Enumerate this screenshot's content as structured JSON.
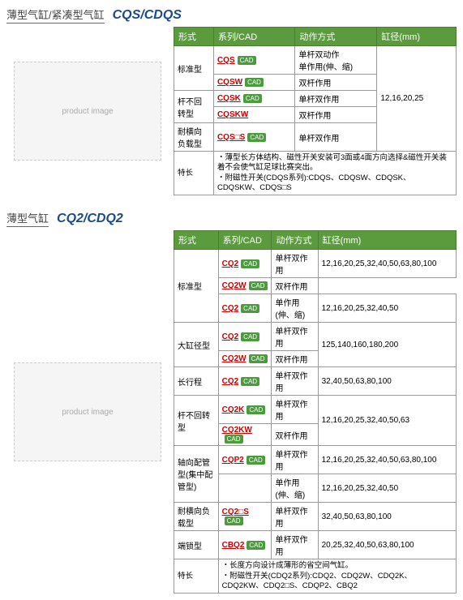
{
  "colors": {
    "header_bg": "#5b9b3e",
    "header_fg": "#ffffff",
    "model_color": "#1a4b8c",
    "link_color": "#cc0000",
    "badge_bg": "#4b9b3e",
    "border": "#999999"
  },
  "columns": [
    "形式",
    "系列/CAD",
    "动作方式",
    "缸径(mm)"
  ],
  "section1": {
    "title": "薄型气缸/紧凑型气缸",
    "model": "CQS/CDQS",
    "bore_shared": "12,16,20,25",
    "rows": [
      {
        "form": "标准型",
        "rowspan": 2,
        "series": "CQS",
        "cad": true,
        "action": "单杆双动作\n单作用(伸、缩)"
      },
      {
        "series": "CQSW",
        "cad": true,
        "action": "双杆作用"
      },
      {
        "form": "杆不回转型",
        "rowspan": 2,
        "series": "CQSK",
        "cad": true,
        "action": "单杆双作用"
      },
      {
        "series": "CQSKW",
        "action": "双杆作用"
      },
      {
        "form": "耐横向负载型",
        "series": "CQS□S",
        "cad": true,
        "action": "单杆双作用"
      }
    ],
    "feature_label": "特长",
    "feature": "・薄型长方体结构、磁性开关安装可3面或4面方向选择&磁性开关装着不会使气缸足球比赛突出。\n・附磁性开关(CDQS系列):CDQS、CDQSW、CDQSK、CDQSKW、CDQS□S"
  },
  "section2": {
    "title": "薄型气缸",
    "model": "CQ2/CDQ2",
    "rows": [
      {
        "form": "标准型",
        "rowspan": 3,
        "series": "CQ2",
        "cad": true,
        "action": "单杆双作用",
        "bore": "12,16,20,25,32,40,50,63,80,100"
      },
      {
        "series": "CQ2W",
        "cad": true,
        "action": "双杆作用"
      },
      {
        "series": "CQ2",
        "cad": true,
        "action": "单作用(伸、缩)",
        "bore": "12,16,20,25,32,40,50"
      },
      {
        "form": "大缸径型",
        "rowspan": 2,
        "series": "CQ2",
        "cad": true,
        "action": "单杆双作用",
        "bore": "125,140,160,180,200",
        "bore_rowspan": 2
      },
      {
        "series": "CQ2W",
        "cad": true,
        "action": "双杆作用"
      },
      {
        "form": "长行程",
        "series": "CQ2",
        "cad": true,
        "action": "单杆双作用",
        "bore": "32,40,50,63,80,100"
      },
      {
        "form": "杆不回转型",
        "rowspan": 2,
        "series": "CQ2K",
        "cad": true,
        "action": "单杆双作用",
        "bore": "12,16,20,25,32,40,50,63",
        "bore_rowspan": 2
      },
      {
        "series": "CQ2KW",
        "cad": true,
        "action": "双杆作用"
      },
      {
        "form": "轴向配管型(集中配管型)",
        "rowspan": 2,
        "series": "CQP2",
        "cad": true,
        "action": "单杆双作用",
        "bore": "12,16,20,25,32,40,50,63,80,100"
      },
      {
        "action": "单作用(伸、缩)",
        "bore": "12,16,20,25,32,40,50"
      },
      {
        "form": "耐横向负载型",
        "series": "CQ2□S",
        "cad": true,
        "action": "单杆双作用",
        "bore": "32,40,50,63,80,100"
      },
      {
        "form": "端锁型",
        "series": "CBQ2",
        "cad": true,
        "action": "单杆双作用",
        "bore": "20,25,32,40,50,63,80,100"
      }
    ],
    "feature_label": "特长",
    "feature": "・长度方向设计成薄形的省空间气缸。\n・附磁性开关(CDQ2系列):CDQ2、CDQ2W、CDQ2K、CDQ2KW、CDQ2□S、CDQP2、CBQ2"
  }
}
